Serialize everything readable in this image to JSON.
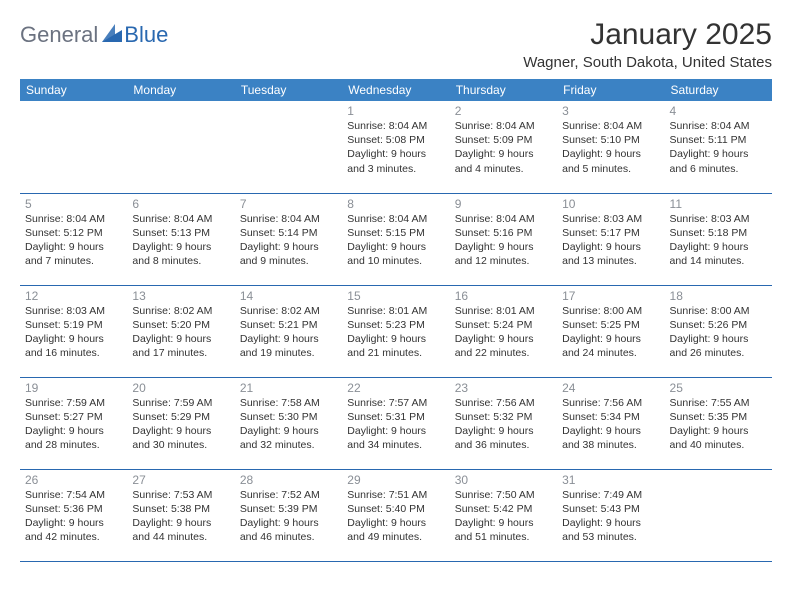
{
  "brand": {
    "text_general": "General",
    "text_blue": "Blue",
    "icon_color": "#2968b0"
  },
  "title": "January 2025",
  "location": "Wagner, South Dakota, United States",
  "colors": {
    "header_bg": "#3b82c4",
    "header_text": "#ffffff",
    "border": "#2968b0",
    "daynum": "#8a8f96",
    "text": "#333333",
    "background": "#ffffff"
  },
  "day_headers": [
    "Sunday",
    "Monday",
    "Tuesday",
    "Wednesday",
    "Thursday",
    "Friday",
    "Saturday"
  ],
  "weeks": [
    [
      {
        "n": "",
        "sr": "",
        "ss": "",
        "dl": ""
      },
      {
        "n": "",
        "sr": "",
        "ss": "",
        "dl": ""
      },
      {
        "n": "",
        "sr": "",
        "ss": "",
        "dl": ""
      },
      {
        "n": "1",
        "sr": "Sunrise: 8:04 AM",
        "ss": "Sunset: 5:08 PM",
        "dl": "Daylight: 9 hours and 3 minutes."
      },
      {
        "n": "2",
        "sr": "Sunrise: 8:04 AM",
        "ss": "Sunset: 5:09 PM",
        "dl": "Daylight: 9 hours and 4 minutes."
      },
      {
        "n": "3",
        "sr": "Sunrise: 8:04 AM",
        "ss": "Sunset: 5:10 PM",
        "dl": "Daylight: 9 hours and 5 minutes."
      },
      {
        "n": "4",
        "sr": "Sunrise: 8:04 AM",
        "ss": "Sunset: 5:11 PM",
        "dl": "Daylight: 9 hours and 6 minutes."
      }
    ],
    [
      {
        "n": "5",
        "sr": "Sunrise: 8:04 AM",
        "ss": "Sunset: 5:12 PM",
        "dl": "Daylight: 9 hours and 7 minutes."
      },
      {
        "n": "6",
        "sr": "Sunrise: 8:04 AM",
        "ss": "Sunset: 5:13 PM",
        "dl": "Daylight: 9 hours and 8 minutes."
      },
      {
        "n": "7",
        "sr": "Sunrise: 8:04 AM",
        "ss": "Sunset: 5:14 PM",
        "dl": "Daylight: 9 hours and 9 minutes."
      },
      {
        "n": "8",
        "sr": "Sunrise: 8:04 AM",
        "ss": "Sunset: 5:15 PM",
        "dl": "Daylight: 9 hours and 10 minutes."
      },
      {
        "n": "9",
        "sr": "Sunrise: 8:04 AM",
        "ss": "Sunset: 5:16 PM",
        "dl": "Daylight: 9 hours and 12 minutes."
      },
      {
        "n": "10",
        "sr": "Sunrise: 8:03 AM",
        "ss": "Sunset: 5:17 PM",
        "dl": "Daylight: 9 hours and 13 minutes."
      },
      {
        "n": "11",
        "sr": "Sunrise: 8:03 AM",
        "ss": "Sunset: 5:18 PM",
        "dl": "Daylight: 9 hours and 14 minutes."
      }
    ],
    [
      {
        "n": "12",
        "sr": "Sunrise: 8:03 AM",
        "ss": "Sunset: 5:19 PM",
        "dl": "Daylight: 9 hours and 16 minutes."
      },
      {
        "n": "13",
        "sr": "Sunrise: 8:02 AM",
        "ss": "Sunset: 5:20 PM",
        "dl": "Daylight: 9 hours and 17 minutes."
      },
      {
        "n": "14",
        "sr": "Sunrise: 8:02 AM",
        "ss": "Sunset: 5:21 PM",
        "dl": "Daylight: 9 hours and 19 minutes."
      },
      {
        "n": "15",
        "sr": "Sunrise: 8:01 AM",
        "ss": "Sunset: 5:23 PM",
        "dl": "Daylight: 9 hours and 21 minutes."
      },
      {
        "n": "16",
        "sr": "Sunrise: 8:01 AM",
        "ss": "Sunset: 5:24 PM",
        "dl": "Daylight: 9 hours and 22 minutes."
      },
      {
        "n": "17",
        "sr": "Sunrise: 8:00 AM",
        "ss": "Sunset: 5:25 PM",
        "dl": "Daylight: 9 hours and 24 minutes."
      },
      {
        "n": "18",
        "sr": "Sunrise: 8:00 AM",
        "ss": "Sunset: 5:26 PM",
        "dl": "Daylight: 9 hours and 26 minutes."
      }
    ],
    [
      {
        "n": "19",
        "sr": "Sunrise: 7:59 AM",
        "ss": "Sunset: 5:27 PM",
        "dl": "Daylight: 9 hours and 28 minutes."
      },
      {
        "n": "20",
        "sr": "Sunrise: 7:59 AM",
        "ss": "Sunset: 5:29 PM",
        "dl": "Daylight: 9 hours and 30 minutes."
      },
      {
        "n": "21",
        "sr": "Sunrise: 7:58 AM",
        "ss": "Sunset: 5:30 PM",
        "dl": "Daylight: 9 hours and 32 minutes."
      },
      {
        "n": "22",
        "sr": "Sunrise: 7:57 AM",
        "ss": "Sunset: 5:31 PM",
        "dl": "Daylight: 9 hours and 34 minutes."
      },
      {
        "n": "23",
        "sr": "Sunrise: 7:56 AM",
        "ss": "Sunset: 5:32 PM",
        "dl": "Daylight: 9 hours and 36 minutes."
      },
      {
        "n": "24",
        "sr": "Sunrise: 7:56 AM",
        "ss": "Sunset: 5:34 PM",
        "dl": "Daylight: 9 hours and 38 minutes."
      },
      {
        "n": "25",
        "sr": "Sunrise: 7:55 AM",
        "ss": "Sunset: 5:35 PM",
        "dl": "Daylight: 9 hours and 40 minutes."
      }
    ],
    [
      {
        "n": "26",
        "sr": "Sunrise: 7:54 AM",
        "ss": "Sunset: 5:36 PM",
        "dl": "Daylight: 9 hours and 42 minutes."
      },
      {
        "n": "27",
        "sr": "Sunrise: 7:53 AM",
        "ss": "Sunset: 5:38 PM",
        "dl": "Daylight: 9 hours and 44 minutes."
      },
      {
        "n": "28",
        "sr": "Sunrise: 7:52 AM",
        "ss": "Sunset: 5:39 PM",
        "dl": "Daylight: 9 hours and 46 minutes."
      },
      {
        "n": "29",
        "sr": "Sunrise: 7:51 AM",
        "ss": "Sunset: 5:40 PM",
        "dl": "Daylight: 9 hours and 49 minutes."
      },
      {
        "n": "30",
        "sr": "Sunrise: 7:50 AM",
        "ss": "Sunset: 5:42 PM",
        "dl": "Daylight: 9 hours and 51 minutes."
      },
      {
        "n": "31",
        "sr": "Sunrise: 7:49 AM",
        "ss": "Sunset: 5:43 PM",
        "dl": "Daylight: 9 hours and 53 minutes."
      },
      {
        "n": "",
        "sr": "",
        "ss": "",
        "dl": ""
      }
    ]
  ]
}
